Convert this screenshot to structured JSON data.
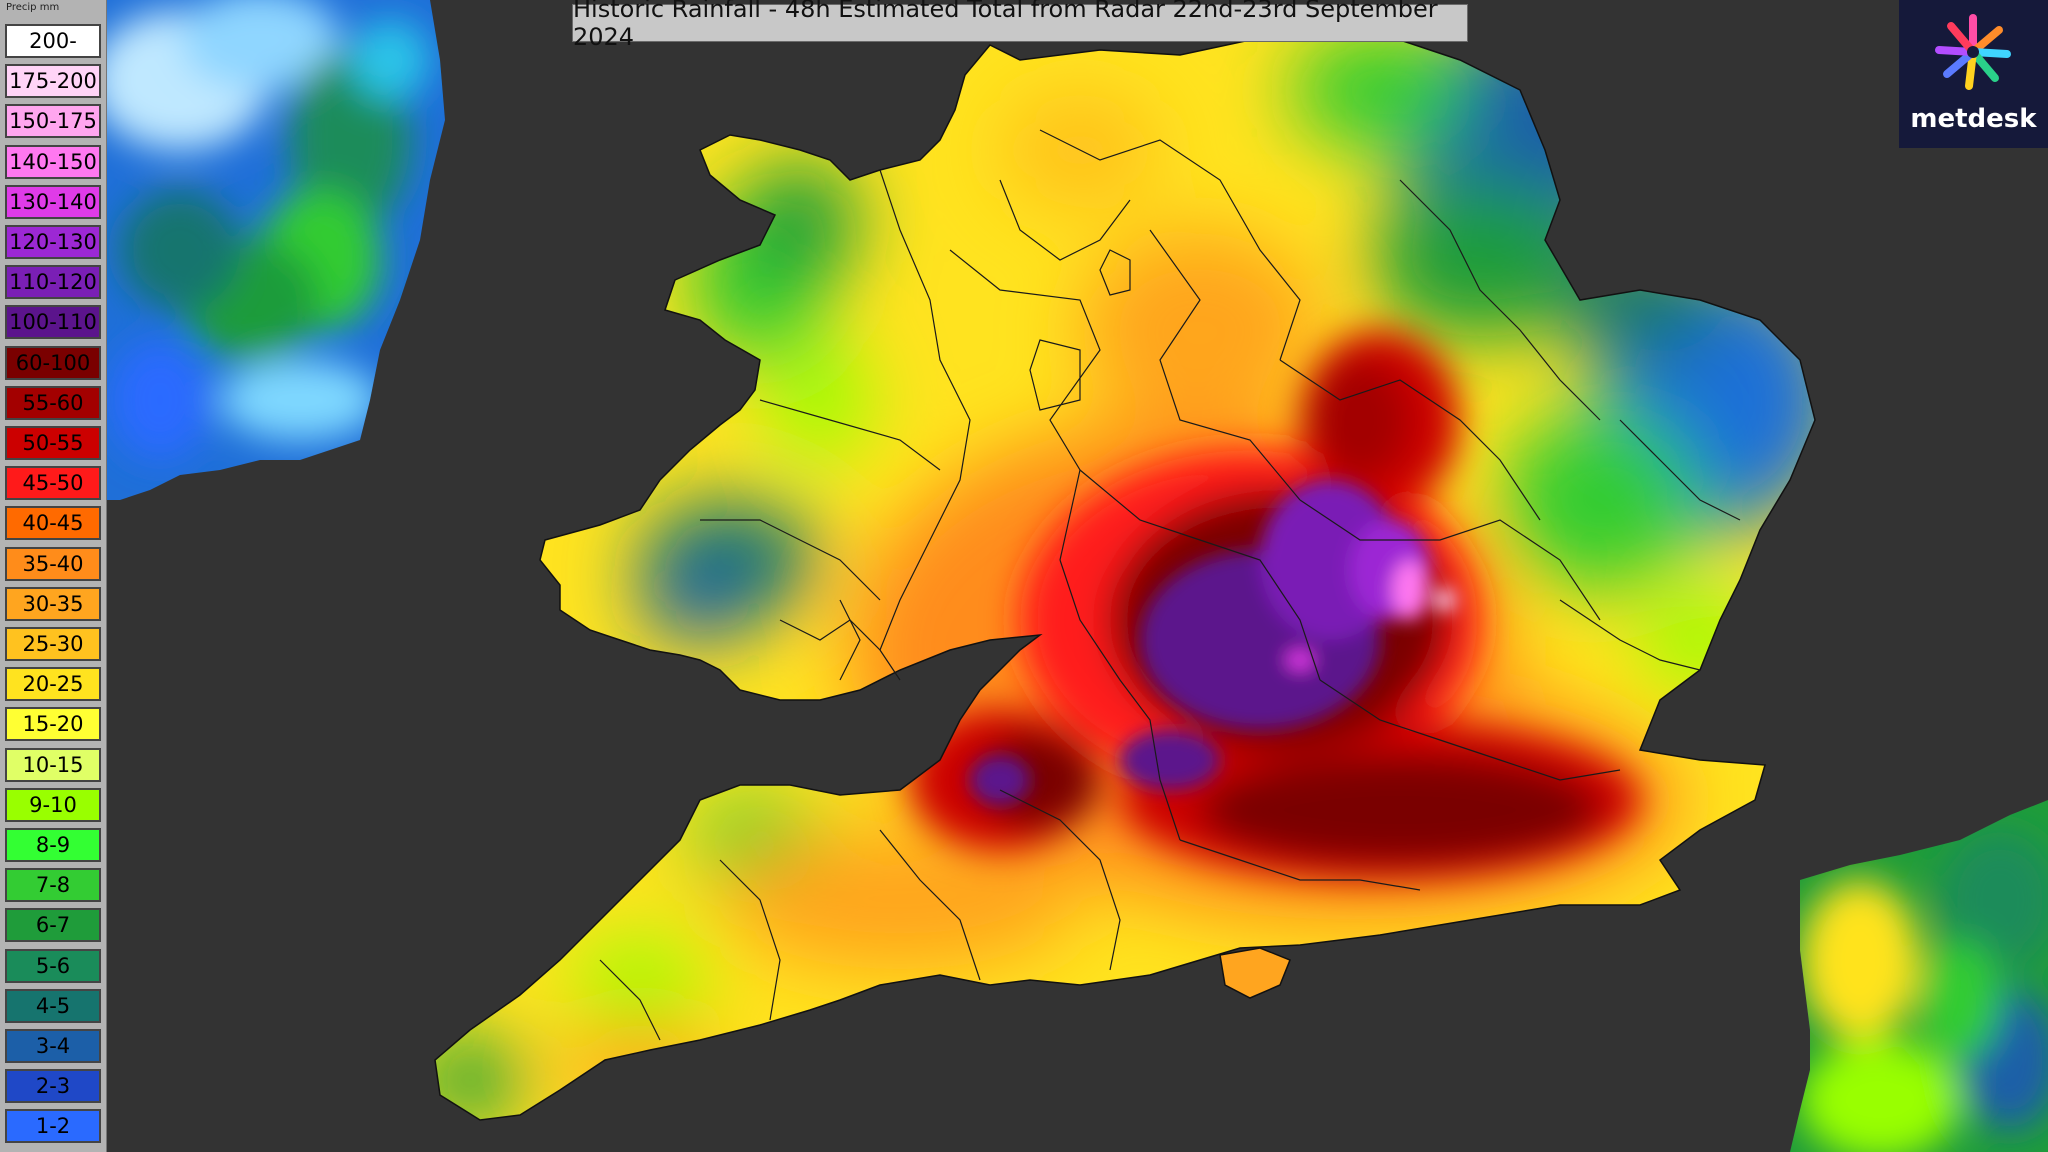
{
  "title": "Historic Rainfall - 48h Estimated Total from Radar 22nd-23rd September 2024",
  "legend": {
    "header": "Precip mm",
    "items": [
      {
        "label": "200-",
        "color": "#ffffff"
      },
      {
        "label": "175-200",
        "color": "#ffd4f7"
      },
      {
        "label": "150-175",
        "color": "#ffa6ef"
      },
      {
        "label": "140-150",
        "color": "#ff78f0"
      },
      {
        "label": "130-140",
        "color": "#df3be8"
      },
      {
        "label": "120-130",
        "color": "#9c28d4"
      },
      {
        "label": "110-120",
        "color": "#7a1fb5"
      },
      {
        "label": "100-110",
        "color": "#5b148c"
      },
      {
        "label": "60-100",
        "color": "#7a0000"
      },
      {
        "label": "55-60",
        "color": "#a30000"
      },
      {
        "label": "50-55",
        "color": "#cc0000"
      },
      {
        "label": "45-50",
        "color": "#ff1a1a"
      },
      {
        "label": "40-45",
        "color": "#ff6a00"
      },
      {
        "label": "35-40",
        "color": "#ff8c1a"
      },
      {
        "label": "30-35",
        "color": "#ffa51f"
      },
      {
        "label": "25-30",
        "color": "#ffc21f"
      },
      {
        "label": "20-25",
        "color": "#ffe31f"
      },
      {
        "label": "15-20",
        "color": "#ffff33"
      },
      {
        "label": "10-15",
        "color": "#e0ff66"
      },
      {
        "label": "9-10",
        "color": "#99ff00"
      },
      {
        "label": "8-9",
        "color": "#33ff33"
      },
      {
        "label": "7-8",
        "color": "#33cc33"
      },
      {
        "label": "6-7",
        "color": "#1f9c3a"
      },
      {
        "label": "5-6",
        "color": "#1a8c5a"
      },
      {
        "label": "4-5",
        "color": "#16746e"
      },
      {
        "label": "3-4",
        "color": "#1c5fa8"
      },
      {
        "label": "2-3",
        "color": "#1f48c7"
      },
      {
        "label": "1-2",
        "color": "#2a6aff"
      }
    ]
  },
  "logo": {
    "text": "metdesk"
  },
  "colors": {
    "background": "#333333",
    "title_bg": "#c8c8c8",
    "logo_bg": "#15193a",
    "border_lines": "#1a1a1a"
  }
}
